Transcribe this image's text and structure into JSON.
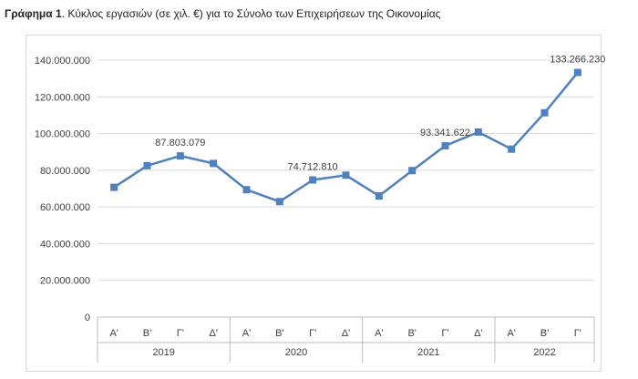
{
  "caption": {
    "label": "Γράφημα 1",
    "text": ". Κύκλος εργασιών (σε χιλ. €) για το Σύνολο των Επιχειρήσεων της Οικονομίας"
  },
  "colors": {
    "series": "#4f81bd",
    "grid": "#d9d9d9",
    "axis_text": "#404040"
  },
  "chart_data": {
    "type": "line",
    "title": "",
    "xlabel": "",
    "ylabel": "",
    "ylim": [
      0,
      140000000
    ],
    "yticks": [
      0,
      20000000,
      40000000,
      60000000,
      80000000,
      100000000,
      120000000,
      140000000
    ],
    "ytick_labels": [
      "0",
      "20.000.000",
      "40.000.000",
      "60.000.000",
      "80.000.000",
      "100.000.000",
      "120.000.000",
      "140.000.000"
    ],
    "grid": true,
    "legend": "none",
    "categories": [
      "Α'",
      "Β'",
      "Γ'",
      "Δ'",
      "Α'",
      "Β'",
      "Γ'",
      "Δ'",
      "Α'",
      "Β'",
      "Γ'",
      "Δ'",
      "Α'",
      "Β'",
      "Γ'"
    ],
    "groups": [
      {
        "label": "2019",
        "count": 4
      },
      {
        "label": "2020",
        "count": 4
      },
      {
        "label": "2021",
        "count": 4
      },
      {
        "label": "2022",
        "count": 3
      }
    ],
    "series": [
      {
        "values": [
          70700000,
          82500000,
          87803079,
          83700000,
          69400000,
          62900000,
          74712810,
          77300000,
          66000000,
          79800000,
          93341622,
          100800000,
          91500000,
          111300000,
          133266230
        ]
      }
    ],
    "data_labels": [
      {
        "index": 2,
        "text": "87.803.079"
      },
      {
        "index": 6,
        "text": "74.712.810"
      },
      {
        "index": 10,
        "text": "93.341.622"
      },
      {
        "index": 14,
        "text": "133.266.230"
      }
    ]
  }
}
